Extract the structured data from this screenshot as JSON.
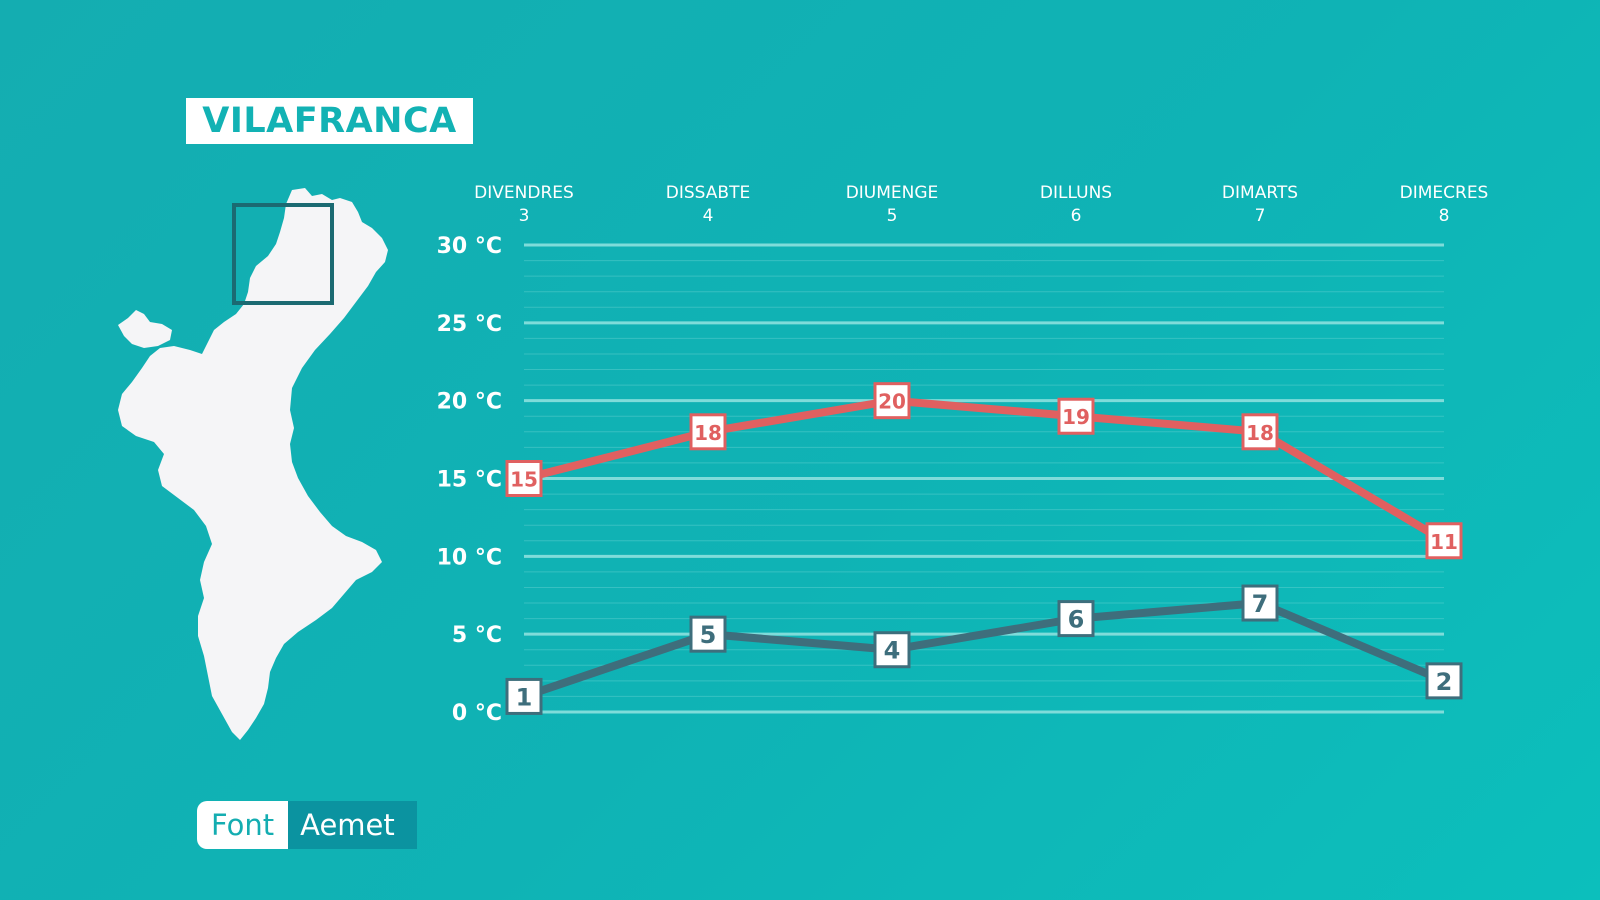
{
  "location": "VILAFRANCA",
  "source": {
    "label": "Font",
    "value": "Aemet"
  },
  "colors": {
    "background": "#13afb2",
    "max_line": "#e06060",
    "min_line": "#3e6e7c",
    "grid": "#7fdcda",
    "map_fill": "#f5f5f7",
    "highlight_box": "#1b6a72"
  },
  "chart_data": {
    "type": "line",
    "categories": [
      {
        "day": "DIVENDRES",
        "date": "3"
      },
      {
        "day": "DISSABTE",
        "date": "4"
      },
      {
        "day": "DIUMENGE",
        "date": "5"
      },
      {
        "day": "DILLUNS",
        "date": "6"
      },
      {
        "day": "DIMARTS",
        "date": "7"
      },
      {
        "day": "DIMECRES",
        "date": "8"
      }
    ],
    "y_ticks": [
      {
        "value": 0,
        "label": "0 °C"
      },
      {
        "value": 5,
        "label": "5 °C"
      },
      {
        "value": 10,
        "label": "10 °C"
      },
      {
        "value": 15,
        "label": "15 °C"
      },
      {
        "value": 20,
        "label": "20 °C"
      },
      {
        "value": 25,
        "label": "25 °C"
      },
      {
        "value": 30,
        "label": "30 °C"
      }
    ],
    "ylim": [
      0,
      30
    ],
    "grid": true,
    "series": [
      {
        "key": "max",
        "values": [
          15,
          18,
          20,
          19,
          18,
          11
        ],
        "color": "#e06060"
      },
      {
        "key": "min",
        "values": [
          1,
          5,
          4,
          6,
          7,
          2
        ],
        "color": "#3e6e7c"
      }
    ]
  }
}
